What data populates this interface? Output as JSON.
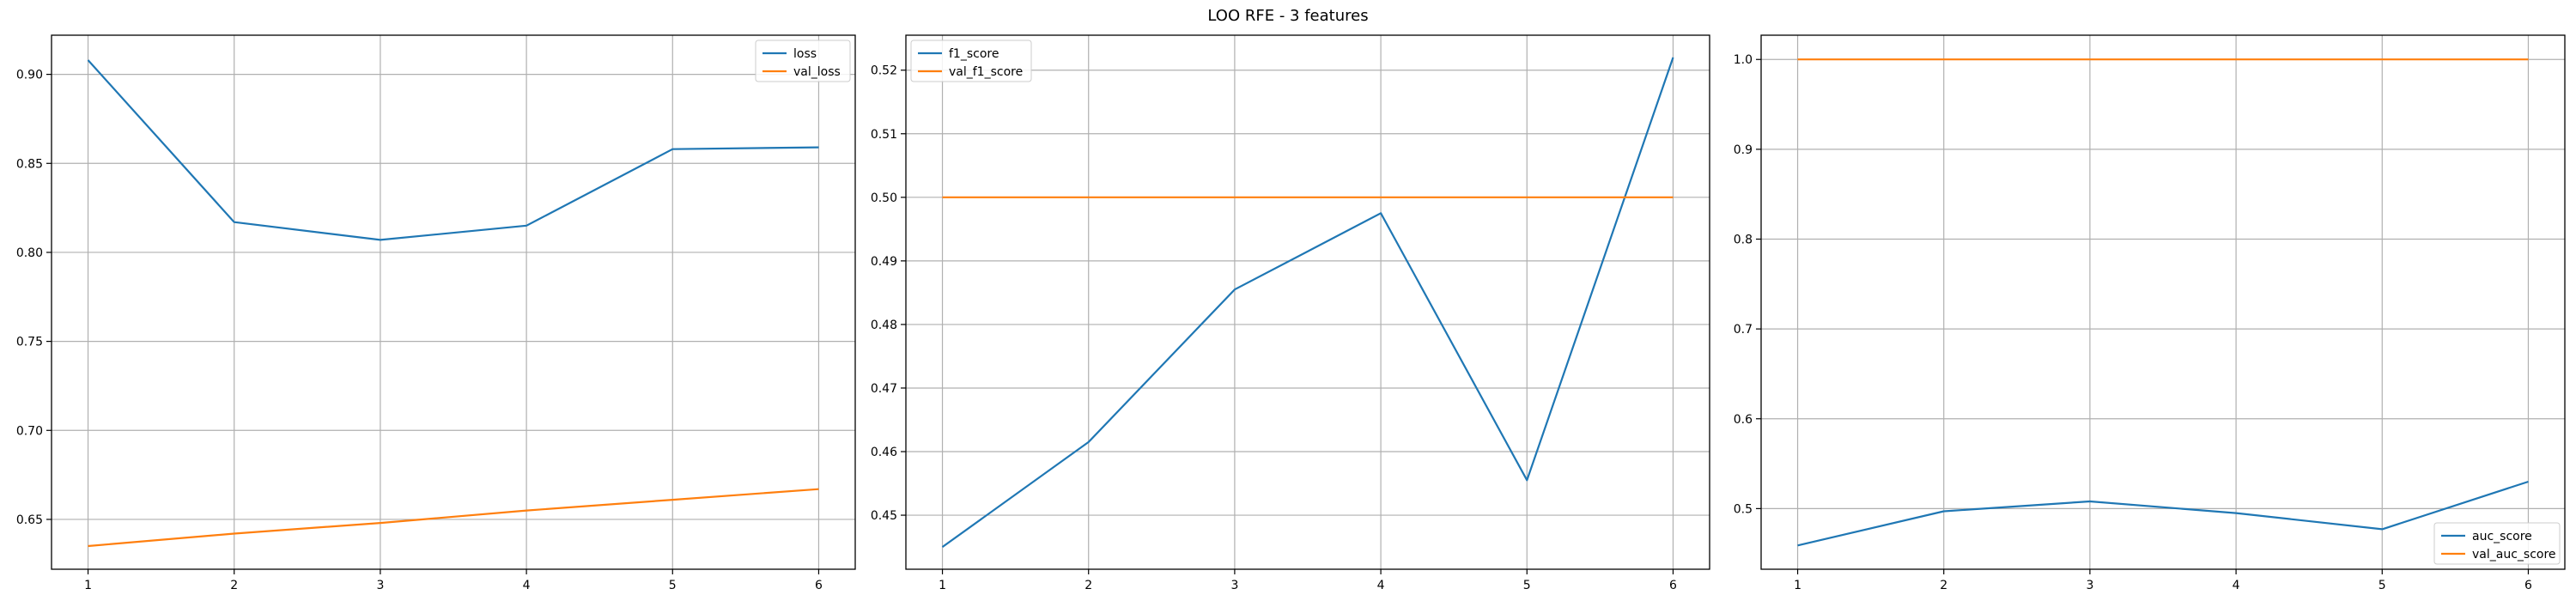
{
  "figure": {
    "title": "LOO RFE - 3 features"
  },
  "colors": {
    "series1": "#1f77b4",
    "series2": "#ff7f0e",
    "grid": "#b0b0b0",
    "axes": "#000000"
  },
  "chart_data": [
    {
      "type": "line",
      "title": "",
      "xlabel": "",
      "ylabel": "",
      "x": [
        1,
        2,
        3,
        4,
        5,
        6
      ],
      "xlim": [
        0.75,
        6.25
      ],
      "ylim": [
        0.622,
        0.922
      ],
      "xticks": [
        1,
        2,
        3,
        4,
        5,
        6
      ],
      "yticks": [
        0.65,
        0.7,
        0.75,
        0.8,
        0.85,
        0.9
      ],
      "ytick_labels": [
        "0.65",
        "0.70",
        "0.75",
        "0.80",
        "0.85",
        "0.90"
      ],
      "grid": true,
      "legend_position": "top-right",
      "series": [
        {
          "name": "loss",
          "color": "#1f77b4",
          "values": [
            0.908,
            0.817,
            0.807,
            0.815,
            0.858,
            0.859
          ]
        },
        {
          "name": "val_loss",
          "color": "#ff7f0e",
          "values": [
            0.635,
            0.642,
            0.648,
            0.655,
            0.661,
            0.667
          ]
        }
      ]
    },
    {
      "type": "line",
      "title": "",
      "xlabel": "",
      "ylabel": "",
      "x": [
        1,
        2,
        3,
        4,
        5,
        6
      ],
      "xlim": [
        0.75,
        6.25
      ],
      "ylim": [
        0.4415,
        0.5255
      ],
      "xticks": [
        1,
        2,
        3,
        4,
        5,
        6
      ],
      "yticks": [
        0.45,
        0.46,
        0.47,
        0.48,
        0.49,
        0.5,
        0.51,
        0.52
      ],
      "ytick_labels": [
        "0.45",
        "0.46",
        "0.47",
        "0.48",
        "0.49",
        "0.50",
        "0.51",
        "0.52"
      ],
      "grid": true,
      "legend_position": "top-left",
      "series": [
        {
          "name": "f1_score",
          "color": "#1f77b4",
          "values": [
            0.445,
            0.4615,
            0.4855,
            0.4975,
            0.4555,
            0.522
          ]
        },
        {
          "name": "val_f1_score",
          "color": "#ff7f0e",
          "values": [
            0.5,
            0.5,
            0.5,
            0.5,
            0.5,
            0.5
          ]
        }
      ]
    },
    {
      "type": "line",
      "title": "",
      "xlabel": "",
      "ylabel": "",
      "x": [
        1,
        2,
        3,
        4,
        5,
        6
      ],
      "xlim": [
        0.75,
        6.25
      ],
      "ylim": [
        0.4325,
        1.027
      ],
      "xticks": [
        1,
        2,
        3,
        4,
        5,
        6
      ],
      "yticks": [
        0.5,
        0.6,
        0.7,
        0.8,
        0.9,
        1.0
      ],
      "ytick_labels": [
        "0.5",
        "0.6",
        "0.7",
        "0.8",
        "0.9",
        "1.0"
      ],
      "grid": true,
      "legend_position": "bottom-right",
      "series": [
        {
          "name": "auc_score",
          "color": "#1f77b4",
          "values": [
            0.459,
            0.497,
            0.508,
            0.495,
            0.477,
            0.53
          ]
        },
        {
          "name": "val_auc_score",
          "color": "#ff7f0e",
          "values": [
            1.0,
            1.0,
            1.0,
            1.0,
            1.0,
            1.0
          ]
        }
      ]
    }
  ]
}
